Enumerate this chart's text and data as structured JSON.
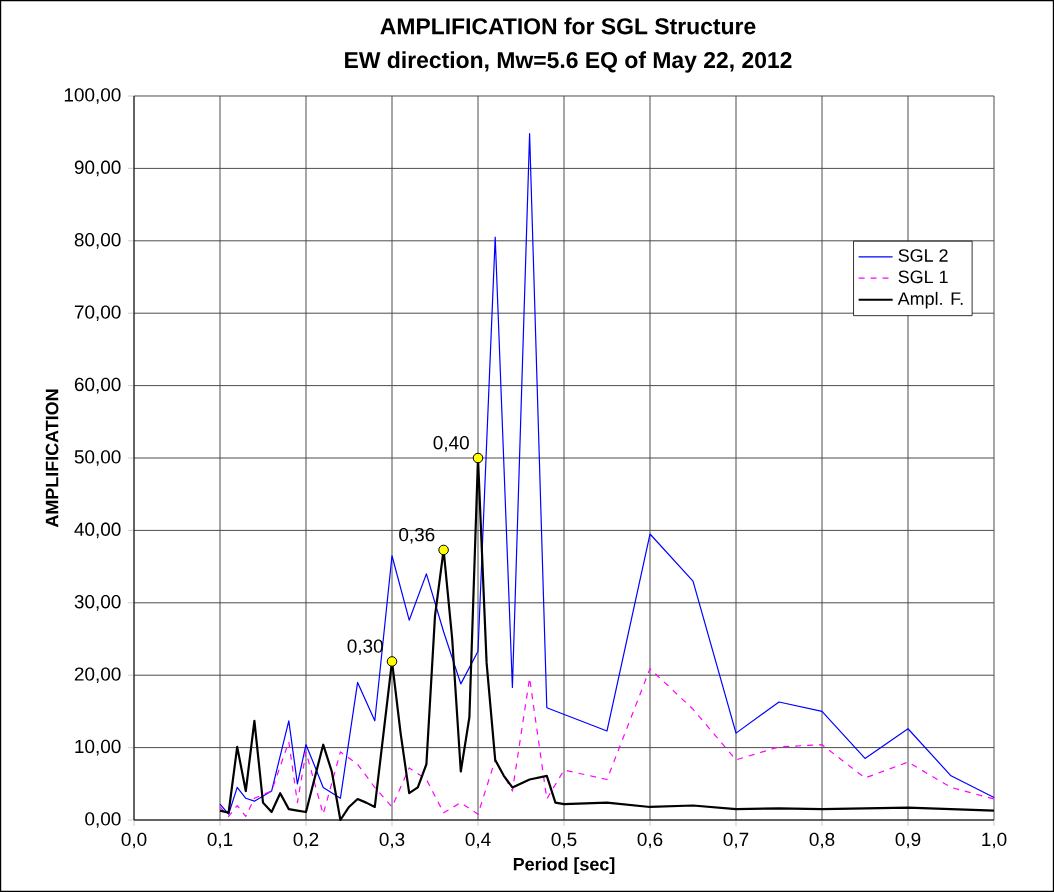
{
  "chart_data": {
    "type": "line",
    "title": "AMPLIFICATION  for SGL Structure",
    "subtitle": "EW direction, Mw=5.6 EQ of May 22, 2012",
    "xlabel": "Period [sec]",
    "ylabel": "AMPLIFICATION",
    "xlim": [
      0,
      1
    ],
    "ylim": [
      0,
      100
    ],
    "xticks": [
      {
        "value": 0,
        "label": "0,0"
      },
      {
        "value": 0.1,
        "label": "0,1"
      },
      {
        "value": 0.2,
        "label": "0,2"
      },
      {
        "value": 0.3,
        "label": "0,3"
      },
      {
        "value": 0.4,
        "label": "0,4"
      },
      {
        "value": 0.5,
        "label": "0,5"
      },
      {
        "value": 0.6,
        "label": "0,6"
      },
      {
        "value": 0.7,
        "label": "0,7"
      },
      {
        "value": 0.8,
        "label": "0,8"
      },
      {
        "value": 0.9,
        "label": "0,9"
      },
      {
        "value": 1,
        "label": "1,0"
      }
    ],
    "yticks": [
      {
        "value": 0,
        "label": "0,00"
      },
      {
        "value": 10,
        "label": "10,00"
      },
      {
        "value": 20,
        "label": "20,00"
      },
      {
        "value": 30,
        "label": "30,00"
      },
      {
        "value": 40,
        "label": "40,00"
      },
      {
        "value": 50,
        "label": "50,00"
      },
      {
        "value": 60,
        "label": "60,00"
      },
      {
        "value": 70,
        "label": "70,00"
      },
      {
        "value": 80,
        "label": "80,00"
      },
      {
        "value": 90,
        "label": "90,00"
      },
      {
        "value": 100,
        "label": "100,00"
      }
    ],
    "grid": true,
    "legend": "top right",
    "series": [
      {
        "name": "SGL 2",
        "color": "#0000ff",
        "line_style": "solid",
        "x": [
          0.1,
          0.11,
          0.12,
          0.13,
          0.14,
          0.16,
          0.18,
          0.19,
          0.2,
          0.21,
          0.22,
          0.24,
          0.26,
          0.28,
          0.3,
          0.32,
          0.34,
          0.36,
          0.38,
          0.4,
          0.42,
          0.44,
          0.46,
          0.48,
          0.55,
          0.6,
          0.65,
          0.7,
          0.75,
          0.8,
          0.85,
          0.9,
          0.95,
          1.0
        ],
        "values": [
          2.2,
          0.8,
          4.5,
          3,
          2.6,
          4,
          13.7,
          5,
          10.4,
          7.5,
          4.5,
          3,
          19,
          13.7,
          36.5,
          27.6,
          34,
          26,
          18.8,
          23.3,
          80.5,
          18.3,
          94.8,
          15.5,
          12.3,
          39.5,
          33,
          12,
          16.3,
          15,
          8.5,
          12.6,
          6.1,
          3.1
        ]
      },
      {
        "name": "SGL 1",
        "color": "#ff00ff",
        "line_style": "dashed",
        "x": [
          0.1,
          0.11,
          0.12,
          0.13,
          0.14,
          0.16,
          0.18,
          0.19,
          0.2,
          0.22,
          0.24,
          0.26,
          0.28,
          0.3,
          0.32,
          0.34,
          0.36,
          0.38,
          0.4,
          0.42,
          0.44,
          0.46,
          0.48,
          0.5,
          0.55,
          0.6,
          0.65,
          0.7,
          0.75,
          0.8,
          0.85,
          0.9,
          0.95,
          1.0
        ],
        "values": [
          1.8,
          0.5,
          2,
          0.5,
          3,
          4,
          10.8,
          2.4,
          9.4,
          0.8,
          9.4,
          7.7,
          4.5,
          1.8,
          7.2,
          5.6,
          1,
          2.4,
          0.8,
          8.3,
          4,
          19.6,
          2.9,
          6.9,
          5.6,
          20.9,
          15.3,
          8.3,
          10.1,
          10.4,
          5.8,
          8,
          4.5,
          2.9
        ]
      },
      {
        "name": "Ampl. F.",
        "color": "#000000",
        "line_style": "solid",
        "x": [
          0.1,
          0.11,
          0.12,
          0.13,
          0.14,
          0.15,
          0.16,
          0.17,
          0.18,
          0.19,
          0.2,
          0.22,
          0.23,
          0.24,
          0.25,
          0.26,
          0.27,
          0.28,
          0.3,
          0.31,
          0.32,
          0.33,
          0.34,
          0.35,
          0.36,
          0.37,
          0.38,
          0.39,
          0.4,
          0.41,
          0.42,
          0.43,
          0.44,
          0.46,
          0.48,
          0.49,
          0.5,
          0.55,
          0.6,
          0.65,
          0.7,
          0.75,
          0.8,
          0.9,
          1.0
        ],
        "values": [
          1.3,
          1,
          10.1,
          4,
          13.7,
          2.4,
          1.1,
          3.7,
          1.5,
          1.3,
          1.1,
          10.4,
          6.7,
          0,
          1.8,
          2.9,
          2.4,
          1.8,
          21.9,
          12,
          3.7,
          4.5,
          7.7,
          28.2,
          37.3,
          25,
          6.7,
          14.2,
          50,
          21.7,
          8.3,
          6.1,
          4.5,
          5.6,
          6.1,
          2.4,
          2.2,
          2.4,
          1.8,
          2,
          1.5,
          1.6,
          1.5,
          1.7,
          1.3
        ]
      },
      {
        "type": "scatter",
        "color": "#ffff00",
        "marker": "circle",
        "x": [
          0.3,
          0.36,
          0.4
        ],
        "values": [
          21.9,
          37.3,
          50
        ]
      }
    ],
    "annotations": [
      {
        "text": "0,30",
        "x": 0.3,
        "y": 21.9
      },
      {
        "text": "0,36",
        "x": 0.36,
        "y": 37.3
      },
      {
        "text": "0,40",
        "x": 0.4,
        "y": 50
      }
    ]
  }
}
